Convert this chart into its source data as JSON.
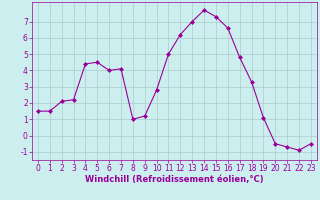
{
  "x": [
    0,
    1,
    2,
    3,
    4,
    5,
    6,
    7,
    8,
    9,
    10,
    11,
    12,
    13,
    14,
    15,
    16,
    17,
    18,
    19,
    20,
    21,
    22,
    23
  ],
  "y": [
    1.5,
    1.5,
    2.1,
    2.2,
    4.4,
    4.5,
    4.0,
    4.1,
    1.0,
    1.2,
    2.8,
    5.0,
    6.2,
    7.0,
    7.7,
    7.3,
    6.6,
    4.8,
    3.3,
    1.1,
    -0.5,
    -0.7,
    -0.9,
    -0.5
  ],
  "line_color": "#990099",
  "marker": "D",
  "marker_size": 2,
  "bg_color": "#cceeee",
  "grid_color": "#aacccc",
  "xlabel": "Windchill (Refroidissement éolien,°C)",
  "xlabel_color": "#990099",
  "xlabel_fontsize": 6.0,
  "tick_color": "#990099",
  "tick_fontsize": 5.5,
  "xlim": [
    -0.5,
    23.5
  ],
  "ylim": [
    -1.5,
    8.2
  ],
  "yticks": [
    -1,
    0,
    1,
    2,
    3,
    4,
    5,
    6,
    7
  ],
  "xticks": [
    0,
    1,
    2,
    3,
    4,
    5,
    6,
    7,
    8,
    9,
    10,
    11,
    12,
    13,
    14,
    15,
    16,
    17,
    18,
    19,
    20,
    21,
    22,
    23
  ]
}
